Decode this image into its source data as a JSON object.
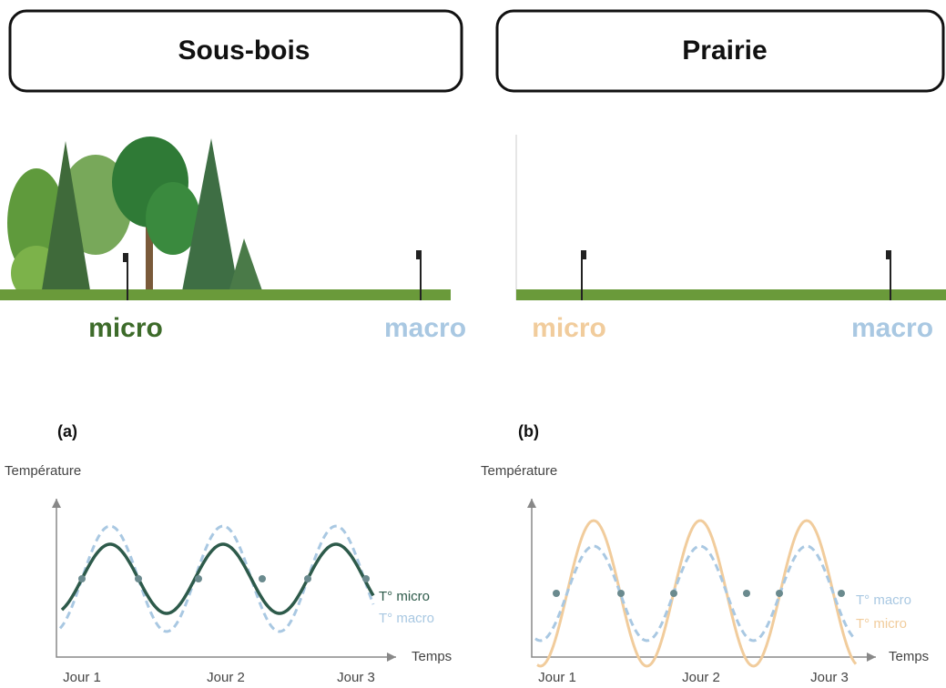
{
  "panels": [
    {
      "title": "Sous-bois",
      "micro_label": "micro",
      "macro_label": "macro",
      "chart": {
        "label": "(a)",
        "y_axis": "Température",
        "x_axis": "Temps",
        "days": [
          "Jour 1",
          "Jour 2",
          "Jour 3"
        ],
        "legend": [
          "T° micro",
          "T° macro"
        ]
      }
    },
    {
      "title": "Prairie",
      "micro_label": "micro",
      "macro_label": "macro",
      "chart": {
        "label": "(b)",
        "y_axis": "Température",
        "x_axis": "Temps",
        "days": [
          "Jour 1",
          "Jour 2",
          "Jour 3"
        ],
        "legend": [
          "T° macro",
          "T° micro"
        ]
      }
    }
  ]
}
